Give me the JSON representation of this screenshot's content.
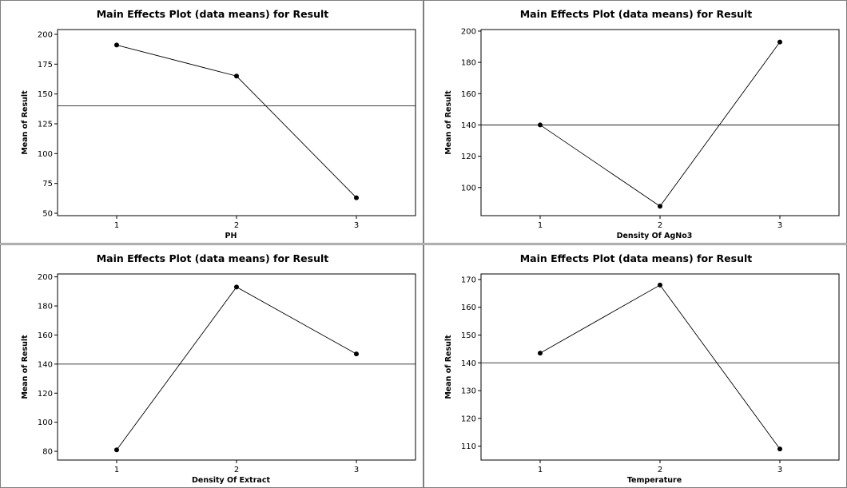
{
  "chart_data": [
    {
      "type": "line",
      "title": "Main Effects Plot (data means) for Result",
      "xlabel": "PH",
      "ylabel": "Mean of Result",
      "categories": [
        "1",
        "2",
        "3"
      ],
      "values": [
        191,
        165,
        63
      ],
      "reference_line": 140,
      "ylim": [
        48,
        204
      ],
      "yticks": [
        50,
        75,
        100,
        125,
        150,
        175,
        200
      ]
    },
    {
      "type": "line",
      "title": "Main Effects Plot (data means) for Result",
      "xlabel": "Density Of AgNo3",
      "ylabel": "Mean of Result",
      "categories": [
        "1",
        "2",
        "3"
      ],
      "values": [
        140,
        88,
        193
      ],
      "reference_line": 140,
      "ylim": [
        82,
        201
      ],
      "yticks": [
        100,
        120,
        140,
        160,
        180,
        200
      ]
    },
    {
      "type": "line",
      "title": "Main Effects Plot (data means) for Result",
      "xlabel": "Density Of Extract",
      "ylabel": "Mean of Result",
      "categories": [
        "1",
        "2",
        "3"
      ],
      "values": [
        81,
        193,
        147
      ],
      "reference_line": 140,
      "ylim": [
        74,
        202
      ],
      "yticks": [
        80,
        100,
        120,
        140,
        160,
        180,
        200
      ]
    },
    {
      "type": "line",
      "title": "Main Effects Plot (data means) for Result",
      "xlabel": "Temperature",
      "ylabel": "Mean of Result",
      "categories": [
        "1",
        "2",
        "3"
      ],
      "values": [
        143.5,
        168,
        109
      ],
      "reference_line": 140,
      "ylim": [
        105,
        172
      ],
      "yticks": [
        110,
        120,
        130,
        140,
        150,
        160,
        170
      ]
    }
  ]
}
